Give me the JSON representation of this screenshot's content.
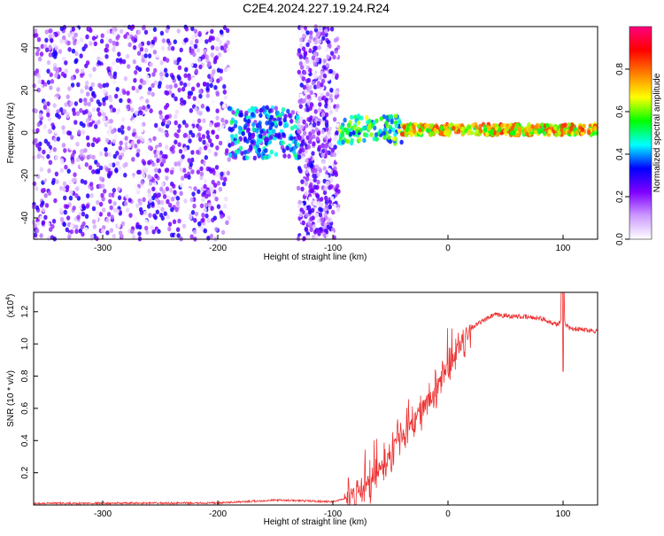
{
  "title": "C2E4.2024.227.19.24.R24",
  "chart_data": [
    {
      "type": "heatmap",
      "name": "spectrogram",
      "xlabel": "Height of straight line (km)",
      "ylabel": "Frequency (Hz)",
      "xlim": [
        -360,
        130
      ],
      "ylim": [
        -50,
        50
      ],
      "xticks": [
        -300,
        -200,
        -100,
        0,
        100
      ],
      "yticks": [
        -40,
        -20,
        0,
        20,
        40
      ],
      "colorbar": {
        "label": "Normalized spectral amplitude",
        "range": [
          0,
          1
        ],
        "ticks": [
          "0.0",
          "0.2",
          "0.4",
          "0.6",
          "0.8"
        ],
        "colors": [
          "#ffffff",
          "#cc99ff",
          "#7f00ff",
          "#0000ff",
          "#00ffff",
          "#00ff00",
          "#ffff00",
          "#ff8000",
          "#ff0000",
          "#ff0080"
        ]
      },
      "regions": [
        {
          "x": [
            -360,
            -190
          ],
          "y": [
            -50,
            50
          ],
          "amplitude": 0.15
        },
        {
          "x": [
            -190,
            -130
          ],
          "y": [
            -12,
            12
          ],
          "amplitude": 0.35
        },
        {
          "x": [
            -130,
            -95
          ],
          "y": [
            -50,
            50
          ],
          "amplitude": 0.15
        },
        {
          "x": [
            -95,
            -40
          ],
          "y": [
            -5,
            8
          ],
          "amplitude": 0.5
        },
        {
          "x": [
            -40,
            130
          ],
          "y": [
            -1,
            4
          ],
          "amplitude": 0.7
        }
      ]
    },
    {
      "type": "line",
      "name": "snr",
      "xlabel": "Height of straight line (km)",
      "ylabel": "SNR (10 * v/v)",
      "yscale_label": "(x10",
      "yscale_exponent": "4",
      "xlim": [
        -360,
        130
      ],
      "ylim": [
        0,
        1.32
      ],
      "xticks": [
        -300,
        -200,
        -100,
        0,
        100
      ],
      "yticks": [
        "0.2",
        "0.4",
        "0.6",
        "0.8",
        "1.0",
        "1.2"
      ],
      "color": "#ee3333",
      "profile": {
        "x": [
          -360,
          -200,
          -180,
          -150,
          -120,
          -100,
          -80,
          -60,
          -45,
          -30,
          -15,
          0,
          20,
          40,
          60,
          80,
          95,
          100,
          105,
          115,
          130
        ],
        "y": [
          0.01,
          0.012,
          0.02,
          0.03,
          0.025,
          0.02,
          0.06,
          0.2,
          0.38,
          0.52,
          0.66,
          0.85,
          1.1,
          1.18,
          1.17,
          1.16,
          1.12,
          1.15,
          1.1,
          1.09,
          1.08
        ]
      }
    }
  ]
}
